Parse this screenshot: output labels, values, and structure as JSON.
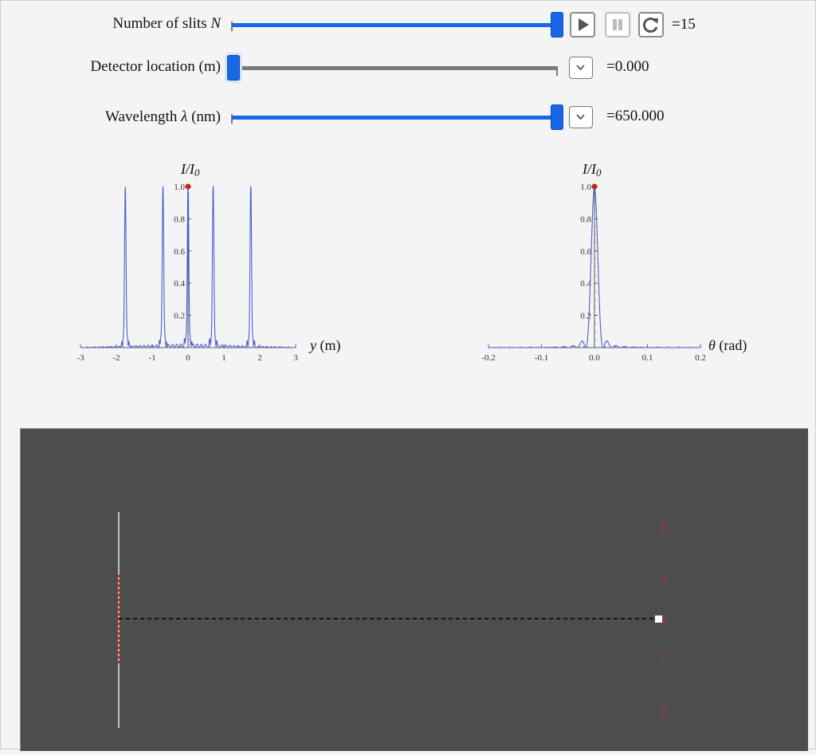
{
  "controls": {
    "num_slits": {
      "label": "Number of slits N",
      "label_main": "Number of slits ",
      "label_var": "N",
      "value": "15",
      "value_text": "=15",
      "fraction": 1.0,
      "play_label": "play",
      "pause_label": "pause",
      "reset_label": "reset"
    },
    "detector": {
      "label": "Detector location (m)",
      "value": "0.000",
      "value_text": "=0.000",
      "fraction": 0.0
    },
    "wavelength": {
      "label_main": "Wavelength ",
      "label_var": "λ",
      "label_unit": " (nm)",
      "value": "650.000",
      "value_text": "=650.000",
      "fraction": 1.0
    }
  },
  "colors": {
    "accent": "#1a67e6",
    "track_inactive": "#7a7a7a",
    "curve": "#4a5fd1",
    "marker": "#c8241f",
    "scene_bg": "#4d4d4d"
  },
  "chart_data": [
    {
      "type": "line",
      "title": "I/I0",
      "ylabel": "I/I0",
      "xlabel": "y (m)",
      "xlim": [
        -3,
        3
      ],
      "ylim": [
        0,
        1.0
      ],
      "x_ticks": [
        "-3",
        "-2",
        "-1",
        "0",
        "1",
        "2",
        "3"
      ],
      "y_ticks": [
        "0.2",
        "0.4",
        "0.6",
        "0.8",
        "1.0"
      ],
      "peaks_y": [
        -1.75,
        -0.7,
        0,
        0.7,
        1.75
      ],
      "marker_point": {
        "x": 0,
        "y": 1.0
      }
    },
    {
      "type": "line",
      "title": "I/I0",
      "ylabel": "I/I0",
      "xlabel": "θ (rad)",
      "xlim": [
        -0.2,
        0.2
      ],
      "ylim": [
        0,
        1.0
      ],
      "x_ticks": [
        "-0.2",
        "-0.1",
        "0.0",
        "0.1",
        "0.2"
      ],
      "y_ticks": [
        "0.2",
        "0.4",
        "0.6",
        "0.8",
        "1.0"
      ],
      "marker_point": {
        "x": 0,
        "y": 1.0
      }
    }
  ]
}
